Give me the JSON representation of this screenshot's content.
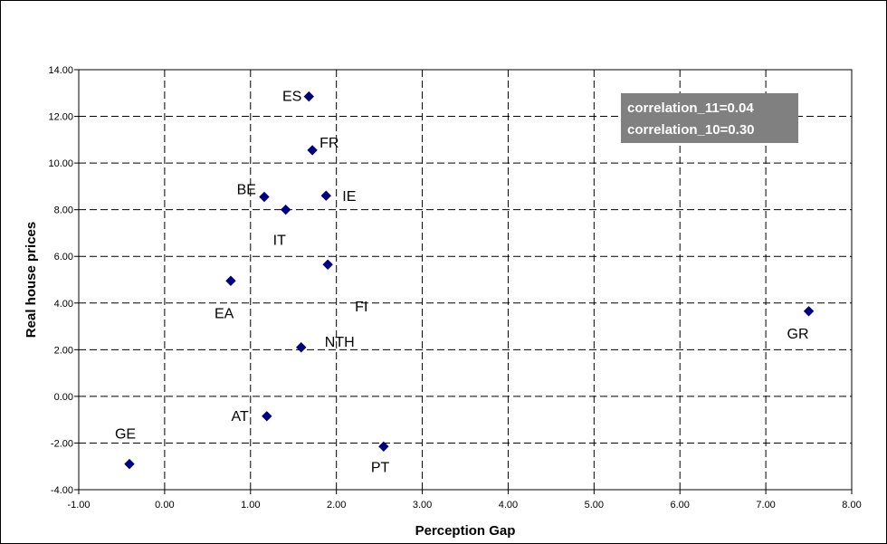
{
  "chart_data": {
    "type": "scatter",
    "title": "",
    "xlabel": "Perception Gap",
    "ylabel": "Real house prices",
    "xlim": [
      -1,
      8
    ],
    "ylim": [
      -4,
      14
    ],
    "xticks": [
      -1,
      0,
      1,
      2,
      3,
      4,
      5,
      6,
      7,
      8
    ],
    "xtick_labels": [
      "-1.00",
      "0.00",
      "1.00",
      "2.00",
      "3.00",
      "4.00",
      "5.00",
      "6.00",
      "7.00",
      "8.00"
    ],
    "yticks": [
      -4,
      -2,
      0,
      2,
      4,
      6,
      8,
      10,
      12,
      14
    ],
    "ytick_labels": [
      "-4.00",
      "-2.00",
      "0.00",
      "2.00",
      "4.00",
      "6.00",
      "8.00",
      "10.00",
      "12.00",
      "14.00"
    ],
    "grid": true,
    "grid_style": "dashed",
    "marker_color": "#000080",
    "points": [
      {
        "label": "ES",
        "x": 1.68,
        "y": 12.85
      },
      {
        "label": "FR",
        "x": 1.72,
        "y": 10.55
      },
      {
        "label": "BE",
        "x": 1.16,
        "y": 8.55
      },
      {
        "label": "IE",
        "x": 1.88,
        "y": 8.6
      },
      {
        "label": "IT",
        "x": 1.41,
        "y": 8.0
      },
      {
        "label": "FI",
        "x": 1.9,
        "y": 5.65
      },
      {
        "label": "EA",
        "x": 0.77,
        "y": 4.95
      },
      {
        "label": "NTH",
        "x": 1.59,
        "y": 2.1
      },
      {
        "label": "GR",
        "x": 7.5,
        "y": 3.65
      },
      {
        "label": "AT",
        "x": 1.19,
        "y": -0.85
      },
      {
        "label": "PT",
        "x": 2.55,
        "y": -2.15
      },
      {
        "label": "GE",
        "x": -0.41,
        "y": -2.9
      }
    ],
    "annotation": {
      "lines": [
        "correlation_11=0.04",
        "correlation_10=0.30"
      ],
      "background": "#808080",
      "text_color": "#ffffff"
    }
  }
}
